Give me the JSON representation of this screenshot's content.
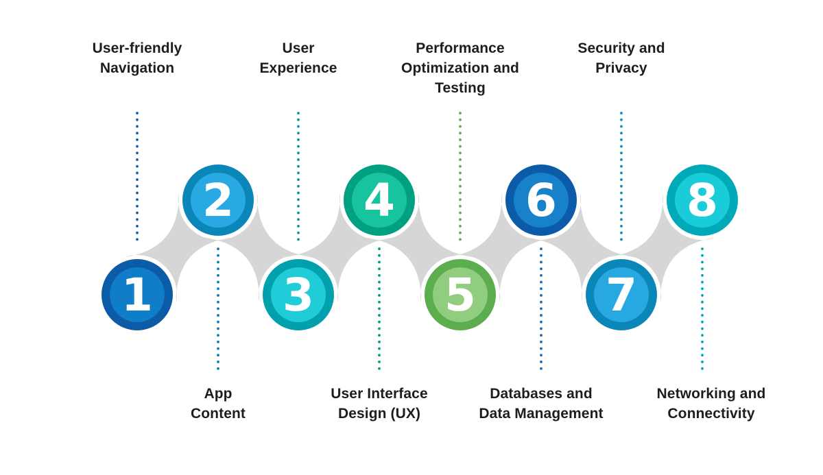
{
  "palette": {
    "background": "#ffffff",
    "band_color": "#d6d6d6",
    "label_text_color": "#1d1d1f",
    "number_text_color": "#ffffff"
  },
  "steps": [
    {
      "number": "1",
      "label": "User-friendly\nNavigation",
      "label_position": "top",
      "outer_color": "#0c5ba6",
      "inner_color": "#0f7dc8",
      "line_color": "#1c60a8"
    },
    {
      "number": "2",
      "label": "App\nContent",
      "label_position": "bottom",
      "outer_color": "#0a87b8",
      "inner_color": "#29a9e1",
      "line_color": "#107dae"
    },
    {
      "number": "3",
      "label": "User\nExperience",
      "label_position": "top",
      "outer_color": "#00a0ad",
      "inner_color": "#20ccd7",
      "line_color": "#0c94a5"
    },
    {
      "number": "4",
      "label": "User Interface\nDesign (UX)",
      "label_position": "bottom",
      "outer_color": "#00a080",
      "inner_color": "#17c49f",
      "line_color": "#009f85"
    },
    {
      "number": "5",
      "label": "Performance\nOptimization and\nTesting",
      "label_position": "top",
      "outer_color": "#5cad4d",
      "inner_color": "#90cd7f",
      "line_color": "#5fae4f"
    },
    {
      "number": "6",
      "label": "Databases and\nData Management",
      "label_position": "bottom",
      "outer_color": "#0c5ba8",
      "inner_color": "#1781ca",
      "line_color": "#1d6bb0"
    },
    {
      "number": "7",
      "label": "Security and\nPrivacy",
      "label_position": "top",
      "outer_color": "#0a87b8",
      "inner_color": "#28a8e0",
      "line_color": "#0d93b8"
    },
    {
      "number": "8",
      "label": "Networking and\nConnectivity",
      "label_position": "bottom",
      "outer_color": "#00a9b8",
      "inner_color": "#1accd9",
      "line_color": "#00a8b4"
    }
  ]
}
